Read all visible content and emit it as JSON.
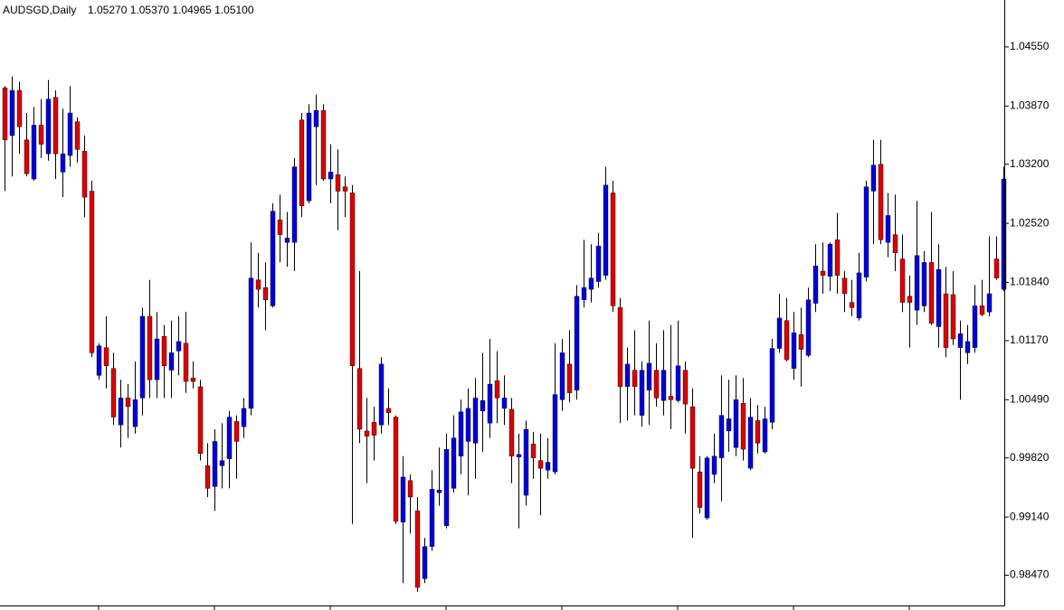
{
  "chart_data": {
    "type": "candlestick",
    "title": "AUDSGD,Daily",
    "subtitle": "1.05270 1.05370 1.04965 1.05100",
    "up_color": "#0000dd",
    "down_color": "#dd0000",
    "wick_color": "#000000",
    "ylim": [
      0.98122,
      1.0509
    ],
    "yticks": [
      {
        "value": 1.0455,
        "label": "1.04550"
      },
      {
        "value": 1.0387,
        "label": "1.03870"
      },
      {
        "value": 1.032,
        "label": "1.03200"
      },
      {
        "value": 1.0252,
        "label": "1.02520"
      },
      {
        "value": 1.0184,
        "label": "1.01840"
      },
      {
        "value": 1.0117,
        "label": "1.01170"
      },
      {
        "value": 1.0049,
        "label": "1.00490"
      },
      {
        "value": 0.9982,
        "label": "0.99820"
      },
      {
        "value": 0.9914,
        "label": "0.99140"
      },
      {
        "value": 0.9847,
        "label": "0.98470"
      }
    ],
    "open": [
      1.0408,
      1.0353,
      1.0405,
      1.0348,
      1.0303,
      1.0365,
      1.0332,
      1.0397,
      1.0311,
      1.033,
      1.0369,
      1.0335,
      1.0289,
      1.0077,
      1.0109,
      1.0085,
      1.002,
      1.0051,
      1.0018,
      1.0051,
      1.0145,
      1.0072,
      1.0122,
      1.0083,
      1.0105,
      1.0114,
      1.0074,
      1.0064,
      0.9973,
      0.9949,
      0.9973,
      0.9981,
      1.0024,
      1.0018,
      1.0039,
      1.0187,
      1.0178,
      1.0157,
      1.0256,
      1.023,
      1.023,
      1.0371,
      1.0278,
      1.0363,
      1.0382,
      1.0303,
      1.0308,
      1.0294,
      1.0287,
      1.0085,
      1.0013,
      1.0023,
      1.002,
      1.0039,
      1.0029,
      0.9908,
      0.9956,
      0.9921,
      0.9843,
      0.988,
      0.9942,
      0.9904,
      0.9947,
      0.9984,
      1.0001,
      0.9999,
      1.0036,
      1.0022,
      1.0071,
      1.0039,
      1.0038,
      0.9983,
      0.9939,
      0.9998,
      0.9979,
      0.9968,
      0.9966,
      1.0049,
      1.009,
      1.006,
      1.0164,
      1.0176,
      1.0185,
      1.0192,
      1.0287,
      1.0155,
      1.0064,
      1.0083,
      1.0031,
      1.006,
      1.0083,
      1.0048,
      1.0053,
      1.0048,
      1.0083,
      1.0041,
      0.9966,
      0.9913,
      0.9963,
      0.9982,
      1.0013,
      0.9994,
      1.0045,
      0.997,
      1.0025,
      0.9989,
      1.0023,
      1.0108,
      1.014,
      1.0085,
      1.0124,
      1.01,
      1.016,
      1.0197,
      1.0191,
      1.0233,
      1.0189,
      1.0161,
      1.0143,
      1.019,
      1.0289,
      1.032,
      1.023,
      1.0239,
      1.0211,
      1.0168,
      1.0152,
      1.0157,
      1.0207,
      1.0133,
      1.0171,
      1.017,
      1.0109,
      1.0103,
      1.0109,
      1.0157,
      1.015,
      1.0211,
      1.0176
    ],
    "high": [
      1.041,
      1.0421,
      1.0415,
      1.0379,
      1.0386,
      1.0395,
      1.0417,
      1.0405,
      1.0384,
      1.041,
      1.0374,
      1.0353,
      1.0301,
      1.0114,
      1.0145,
      1.0103,
      1.0072,
      1.0067,
      1.0093,
      1.0155,
      1.0187,
      1.015,
      1.0135,
      1.014,
      1.0145,
      1.015,
      1.0093,
      1.0072,
      0.9999,
      1.0015,
      1.0022,
      1.0036,
      1.0031,
      1.0051,
      1.023,
      1.0218,
      1.0207,
      1.0275,
      1.0285,
      1.0265,
      1.0327,
      1.0379,
      1.0389,
      1.04,
      1.0389,
      1.0343,
      1.0337,
      1.0306,
      1.0296,
      1.0197,
      1.0051,
      1.0041,
      1.0098,
      1.0062,
      1.0031,
      0.9984,
      0.9963,
      0.9937,
      0.989,
      0.9968,
      0.9994,
      1.001,
      1.0031,
      1.0049,
      1.0062,
      1.0074,
      1.0103,
      1.0119,
      1.0105,
      1.0077,
      1.0051,
      1.001,
      1.0025,
      1.0012,
      1.001,
      1.0005,
      1.0114,
      1.0119,
      1.0129,
      1.0181,
      1.0233,
      1.0228,
      1.0241,
      1.0317,
      1.0301,
      1.0166,
      1.0109,
      1.0129,
      1.0093,
      1.014,
      1.0114,
      1.0129,
      1.0135,
      1.014,
      1.0093,
      1.0062,
      0.9984,
      0.9984,
      1.001,
      1.0077,
      1.0072,
      1.0077,
      1.0074,
      1.0051,
      1.0043,
      1.0041,
      1.0119,
      1.0171,
      1.0166,
      1.015,
      1.0155,
      1.0178,
      1.0228,
      1.023,
      1.023,
      1.0264,
      1.0197,
      1.0187,
      1.0218,
      1.0301,
      1.0348,
      1.0348,
      1.0287,
      1.0285,
      1.0239,
      1.0192,
      1.0278,
      1.022,
      1.0265,
      1.0228,
      1.0202,
      1.0197,
      1.014,
      1.0135,
      1.0181,
      1.0187,
      1.0237,
      1.0237,
      1.0317
    ],
    "low": [
      1.0289,
      1.0306,
      1.0332,
      1.0306,
      1.0301,
      1.0327,
      1.0324,
      1.0303,
      1.0282,
      1.0317,
      1.0322,
      1.0259,
      1.0098,
      1.0072,
      1.0062,
      1.002,
      0.9994,
      1.0005,
      1.001,
      1.0031,
      1.0051,
      1.0051,
      1.0051,
      1.0051,
      1.0077,
      1.0057,
      1.0062,
      0.9979,
      0.9937,
      0.9921,
      0.9947,
      0.9947,
      0.9958,
      1.0005,
      1.0031,
      1.0155,
      1.0129,
      1.0155,
      1.0207,
      1.0202,
      1.0197,
      1.0259,
      1.0275,
      1.0296,
      1.0301,
      1.0275,
      1.0244,
      1.0259,
      0.9906,
      0.9999,
      0.9953,
      0.9979,
      1.001,
      1.002,
      0.9906,
      0.9838,
      0.9895,
      0.9828,
      0.9838,
      0.9875,
      0.9927,
      0.9901,
      0.9942,
      0.9963,
      0.9939,
      0.9958,
      0.9989,
      1.0005,
      1.0022,
      1.002,
      0.9953,
      0.9901,
      0.9927,
      0.9958,
      0.9916,
      0.9958,
      0.9963,
      1.0036,
      1.0046,
      1.0049,
      1.0155,
      1.0161,
      1.0178,
      1.0187,
      1.015,
      1.0022,
      1.0025,
      1.0031,
      1.0018,
      1.002,
      1.0041,
      1.0031,
      1.0015,
      1.0046,
      1.001,
      0.989,
      0.9918,
      0.9911,
      0.9953,
      0.9932,
      0.9989,
      0.9984,
      0.9979,
      0.9968,
      0.9987,
      0.9987,
      1.0015,
      1.0103,
      1.0093,
      1.0072,
      1.0064,
      1.0098,
      1.015,
      1.0171,
      1.0174,
      1.0171,
      1.015,
      1.0145,
      1.014,
      1.0185,
      1.0228,
      1.0228,
      1.0213,
      1.0197,
      1.015,
      1.0109,
      1.0135,
      1.015,
      1.0135,
      1.0109,
      1.0098,
      1.0112,
      1.0049,
      1.009,
      1.0103,
      1.0145,
      1.0145,
      1.0187,
      1.0174
    ],
    "close": [
      1.0348,
      1.0405,
      1.0363,
      1.0309,
      1.0365,
      1.0343,
      1.0395,
      1.0332,
      1.0332,
      1.0379,
      1.0337,
      1.0282,
      1.0103,
      1.0111,
      1.0088,
      1.0029,
      1.0051,
      1.0041,
      1.0049,
      1.0145,
      1.0072,
      1.0119,
      1.0088,
      1.0103,
      1.0116,
      1.007,
      1.007,
      0.9987,
      0.9947,
      1.0001,
      0.9979,
      1.0029,
      1.0001,
      1.0039,
      1.0189,
      1.0176,
      1.0164,
      1.0266,
      1.0239,
      1.0235,
      1.0317,
      1.0272,
      1.0379,
      1.0382,
      1.0303,
      1.0311,
      1.0289,
      1.0289,
      1.0088,
      1.0015,
      1.0007,
      1.0008,
      1.009,
      1.0034,
      0.9909,
      0.996,
      0.9937,
      0.9833,
      0.988,
      0.9946,
      0.9945,
      0.9992,
      1.0005,
      1.0035,
      1.0039,
      1.0051,
      1.0048,
      1.0067,
      1.0051,
      1.0051,
      0.9984,
      0.9986,
      1.0015,
      0.9982,
      0.997,
      0.9977,
      1.0055,
      1.0103,
      1.0057,
      1.0168,
      1.0178,
      1.0189,
      1.0226,
      1.0296,
      1.0157,
      1.0064,
      1.009,
      1.0064,
      1.0083,
      1.0091,
      1.0051,
      1.0083,
      1.0049,
      1.0088,
      1.0044,
      0.997,
      0.9925,
      0.9982,
      0.9984,
      1.0031,
      1.0027,
      1.0049,
      0.9992,
      1.0029,
      0.9999,
      1.0027,
      1.0108,
      1.0143,
      1.0095,
      1.0126,
      1.0107,
      1.0164,
      1.0203,
      1.0192,
      1.0228,
      1.0192,
      1.0171,
      1.0155,
      1.0195,
      1.0294,
      1.0319,
      1.0233,
      1.0261,
      1.0218,
      1.0161,
      1.0161,
      1.0215,
      1.0207,
      1.0137,
      1.0199,
      1.0109,
      1.0119,
      1.0125,
      1.0116,
      1.0157,
      1.0147,
      1.0171,
      1.0189,
      1.0303
    ]
  }
}
